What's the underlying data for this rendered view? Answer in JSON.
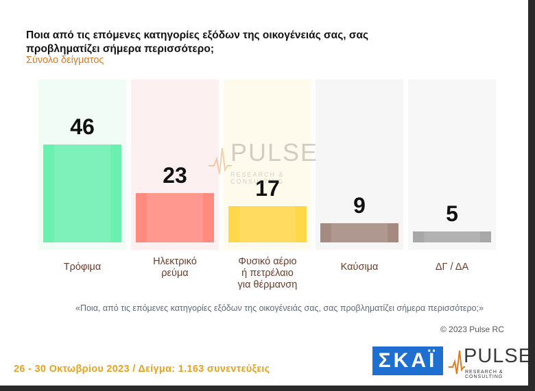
{
  "header": {
    "title": "Ποια από τις επόμενες κατηγορίες εξόδων της οικογένειάς σας, σας προβληματίζει σήμερα περισσότερο;",
    "subtitle": "Σύνολο δείγματος"
  },
  "chart_data": {
    "type": "bar",
    "title": "Ποια από τις επόμενες κατηγορίες εξόδων της οικογένειάς σας, σας προβληματίζει σήμερα περισσότερο;",
    "categories": [
      "Τρόφιμα",
      "Ηλεκτρικό ρεύμα",
      "Φυσικό αέριο ή πετρέλαιο για θέρμανση",
      "Καύσιμα",
      "ΔΓ / ΔΑ"
    ],
    "category_lines": [
      [
        "Τρόφιμα"
      ],
      [
        "Ηλεκτρικό",
        "ρεύμα"
      ],
      [
        "Φυσικό αέριο",
        "ή πετρέλαιο",
        "για θέρμανση"
      ],
      [
        "Καύσιμα"
      ],
      [
        "ΔΓ / ΔΑ"
      ]
    ],
    "values": [
      46,
      23,
      17,
      9,
      5
    ],
    "value_labels": [
      "46",
      "23",
      "17",
      "9",
      "5"
    ],
    "colors": [
      "#6cf0b0",
      "#ff8a80",
      "#ffd84a",
      "#a48a80",
      "#a8a8a8"
    ],
    "background_colors": [
      "#f2fcf6",
      "#fdf0f0",
      "#fffbec",
      "#f7f6f6",
      "#f7f7f7"
    ],
    "ylim": [
      0,
      46
    ],
    "grid": false,
    "legend": "none"
  },
  "watermark": {
    "brand": "PULSE",
    "tagline": "RESEARCH & CONSULTING"
  },
  "question_text": "«Ποια, από τις επόμενες κατηγορίες εξόδων της οικογένειάς σας, σας προβληματίζει σήμερα περισσότερο;»",
  "copyright": "© 2023 Pulse RC",
  "footer": "26 - 30  Οκτωβρίου  2023  /  Δείγμα:  1.163 συνεντεύξεις",
  "logos": {
    "skai": "ΣΚΑΪ",
    "pulse": "PULSE",
    "pulse_tagline": "RESEARCH & CONSULTING"
  }
}
